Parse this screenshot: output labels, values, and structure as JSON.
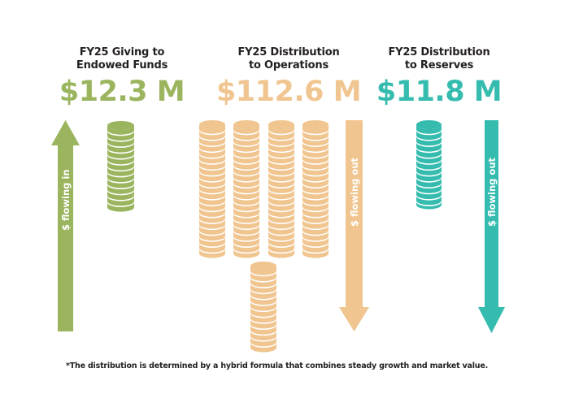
{
  "colors": {
    "green": "#9bb55f",
    "orange": "#f0c58f",
    "teal": "#35bcaf",
    "text": "#231f20"
  },
  "panels": [
    {
      "title_line1": "FY25 Giving to",
      "title_line2": "Endowed Funds",
      "amount": "$12.3 M",
      "arrow_label": "$ flowing in",
      "arrow_direction": "up",
      "coin_stacks": 1
    },
    {
      "title_line1": "FY25 Distribution",
      "title_line2": "to Operations",
      "amount": "$112.6 M",
      "arrow_label": "$ flowing out",
      "arrow_direction": "down",
      "coin_stacks": 5
    },
    {
      "title_line1": "FY25 Distribution",
      "title_line2": "to Reserves",
      "amount": "$11.8 M",
      "arrow_label": "$ flowing out",
      "arrow_direction": "down",
      "coin_stacks": 1
    }
  ],
  "footnote": "*The distribution is determined by a hybrid formula that combines steady growth and market value."
}
